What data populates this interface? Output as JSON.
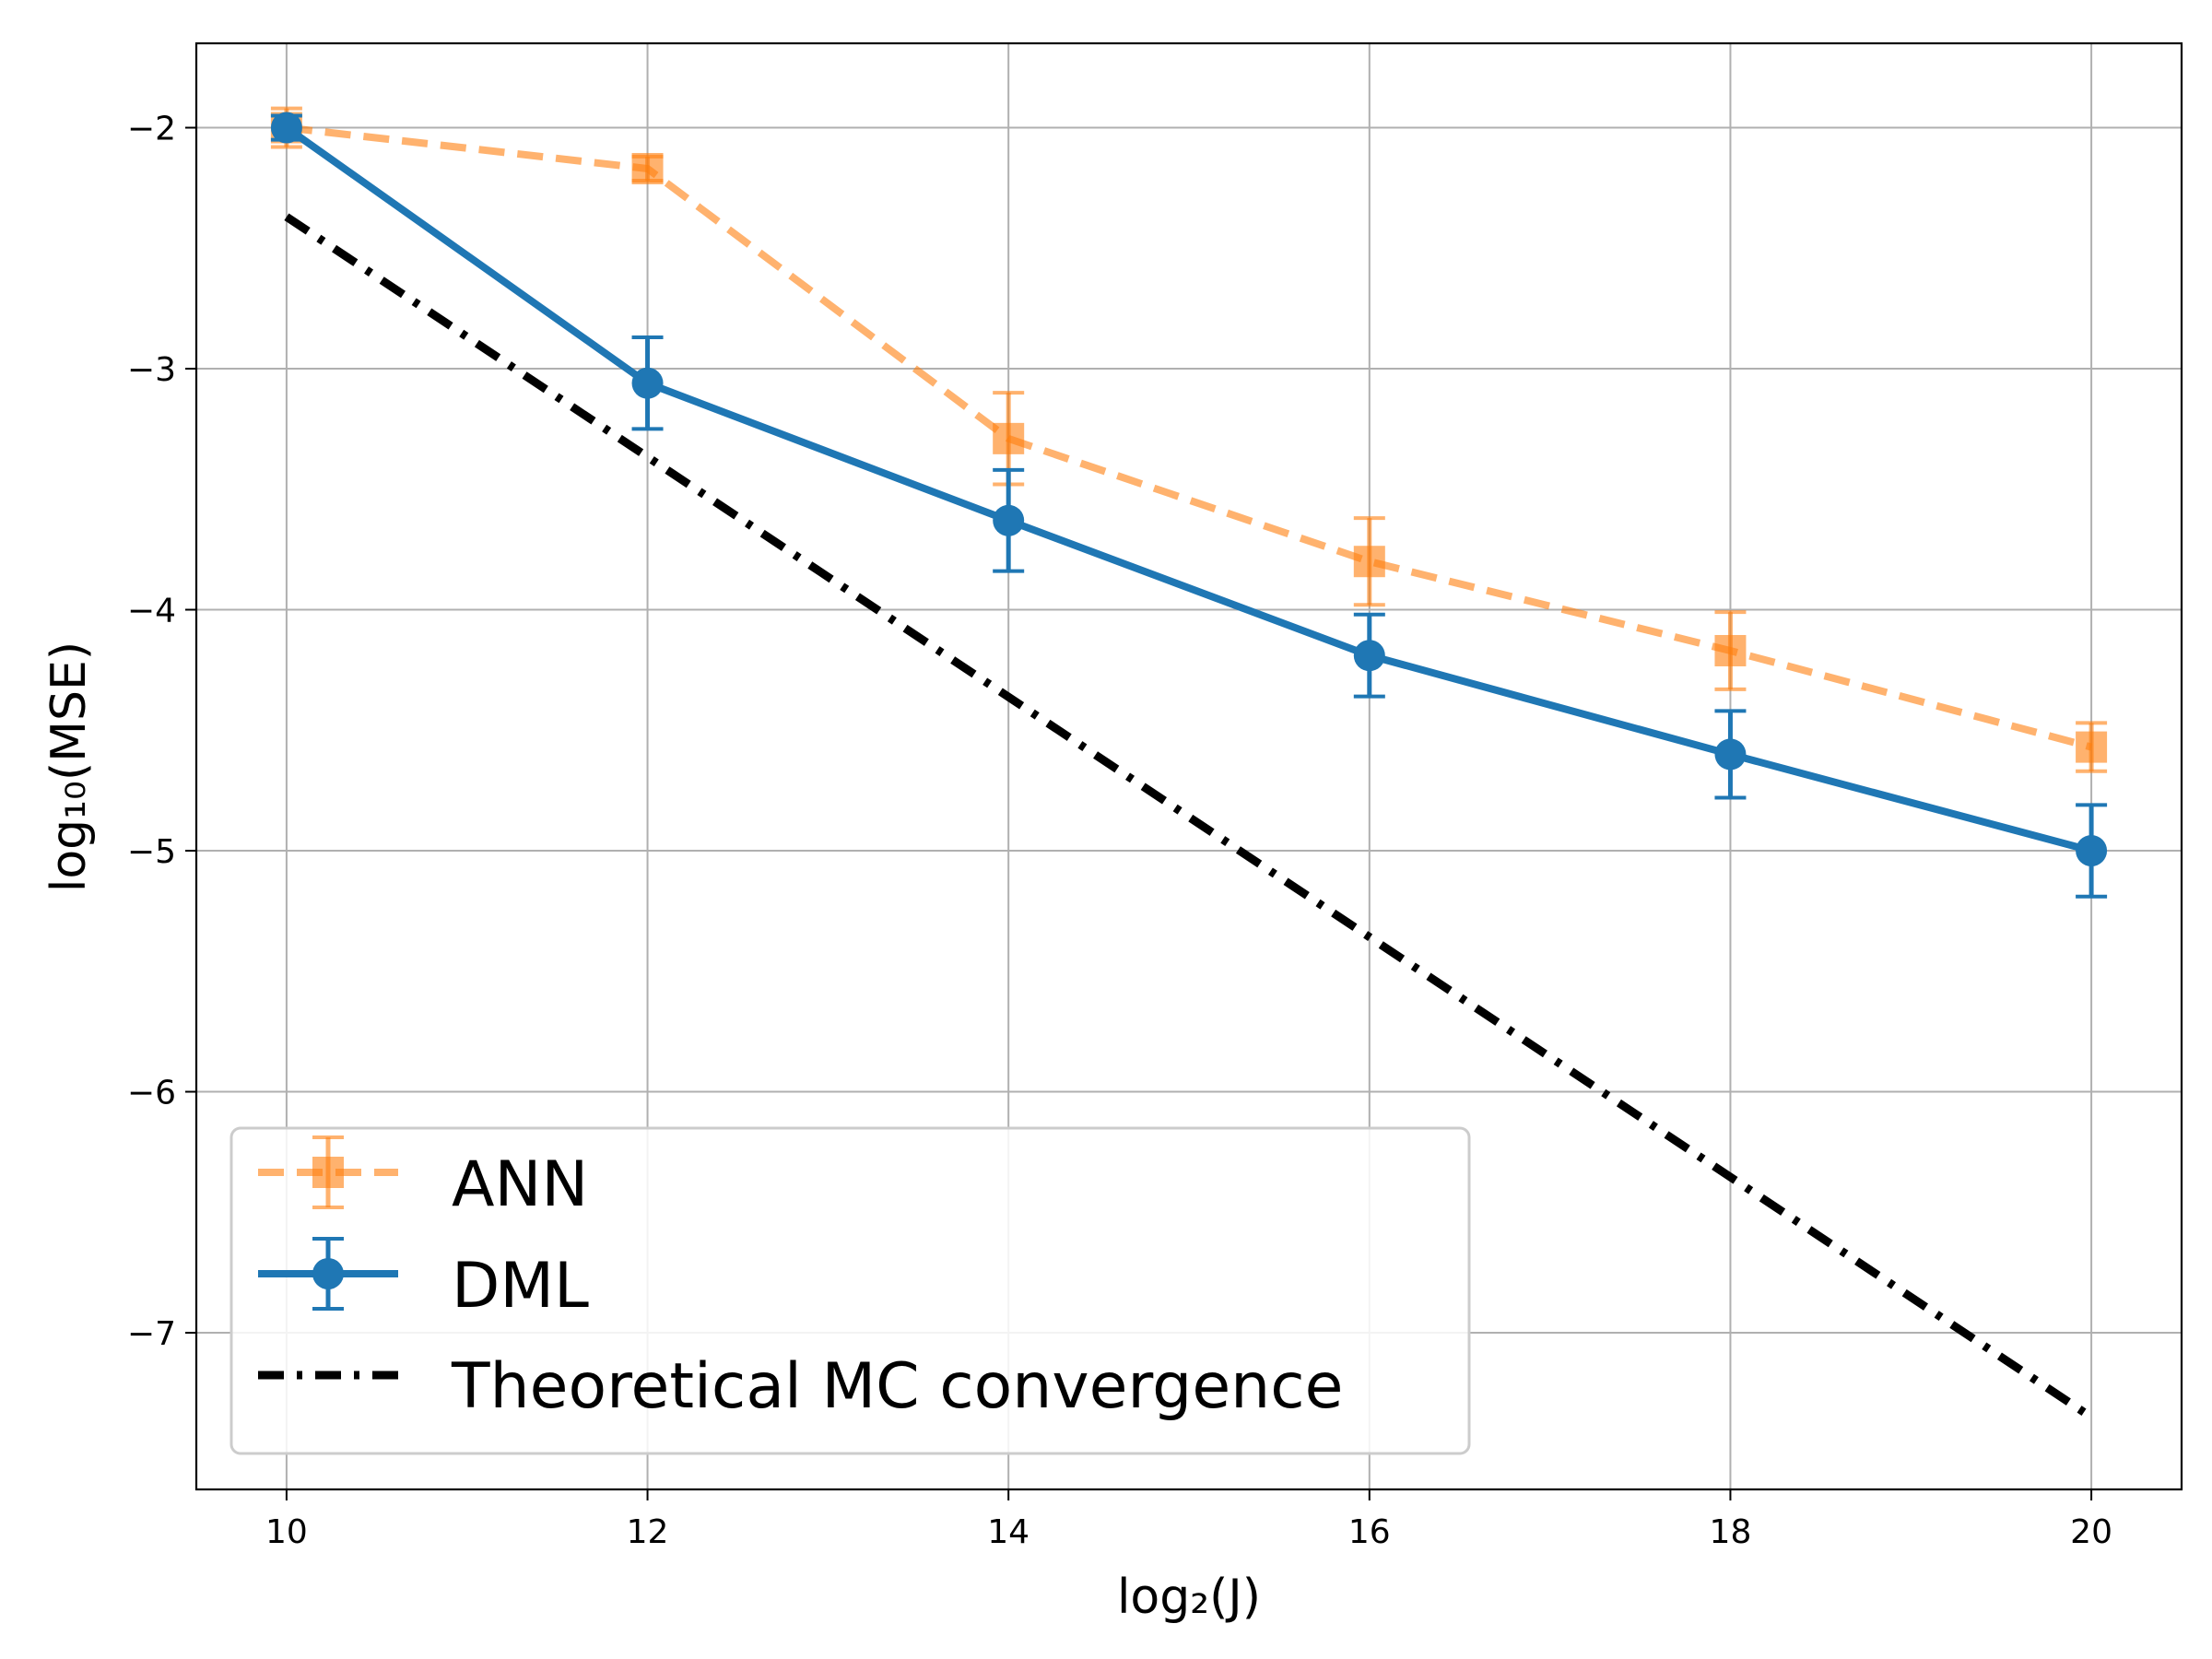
{
  "chart_data": {
    "type": "line",
    "title": "",
    "xlabel": "log₂(J)",
    "ylabel": "log₁₀(MSE)",
    "xlim": [
      9.5,
      20.5
    ],
    "ylim": [
      -7.65,
      -1.65
    ],
    "grid": true,
    "legend_position": "bottom-left",
    "x_ticks": [
      10,
      12,
      14,
      16,
      18,
      20
    ],
    "x_tick_labels": [
      "10",
      "12",
      "14",
      "16",
      "18",
      "20"
    ],
    "y_ticks": [
      -2,
      -3,
      -4,
      -5,
      -6,
      -7
    ],
    "y_tick_labels": [
      "−2",
      "−3",
      "−4",
      "−5",
      "−6",
      "−7"
    ],
    "series": [
      {
        "name": "ANN",
        "style": "dashed",
        "marker": "square",
        "color": "#ff7f0e",
        "x": [
          10,
          12,
          14,
          16,
          18,
          20
        ],
        "values": [
          -2.0,
          -2.17,
          -3.29,
          -3.8,
          -4.17,
          -4.57
        ],
        "error": [
          0.08,
          0.05,
          0.19,
          0.18,
          0.16,
          0.1
        ]
      },
      {
        "name": "DML",
        "style": "solid",
        "marker": "circle",
        "color": "#1f77b4",
        "x": [
          10,
          12,
          14,
          16,
          18,
          20
        ],
        "values": [
          -2.0,
          -3.06,
          -3.63,
          -4.19,
          -4.6,
          -5.0
        ],
        "error": [
          0.05,
          0.19,
          0.21,
          0.17,
          0.18,
          0.19
        ]
      },
      {
        "name": "Theoretical MC convergence",
        "style": "dashdot",
        "marker": "none",
        "color": "#000000",
        "x": [
          10,
          20
        ],
        "values": [
          -2.37,
          -7.35
        ]
      }
    ]
  }
}
